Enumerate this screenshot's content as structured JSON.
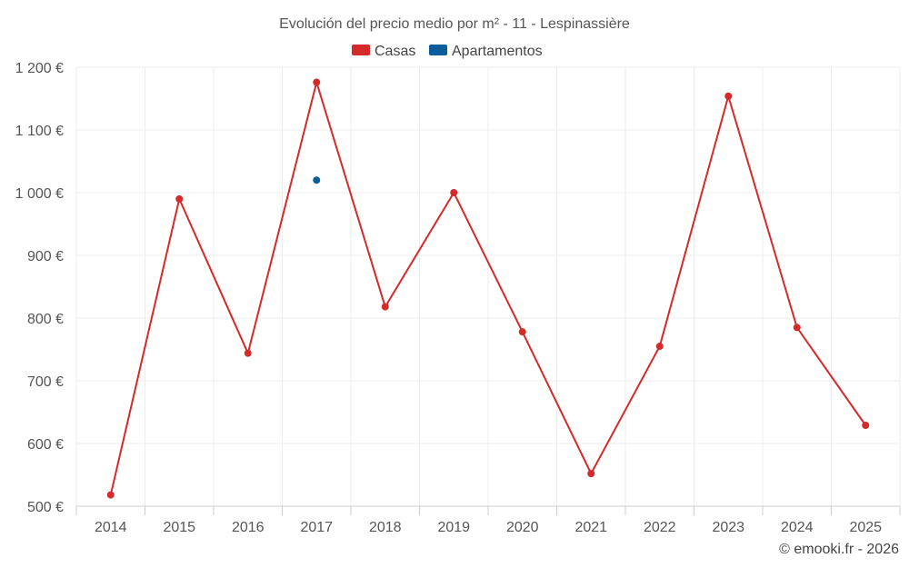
{
  "chart_data": {
    "type": "line",
    "title": "Evolución del precio medio por m² - 11 - Lespinassière",
    "categories": [
      "2014",
      "2015",
      "2016",
      "2017",
      "2018",
      "2019",
      "2020",
      "2021",
      "2022",
      "2023",
      "2024",
      "2025"
    ],
    "series": [
      {
        "name": "Casas",
        "color": "#d42a2a",
        "values": [
          518,
          990,
          744,
          1176,
          818,
          1000,
          778,
          552,
          755,
          1154,
          785,
          629
        ]
      },
      {
        "name": "Apartamentos",
        "color": "#0b5e9b",
        "values": [
          null,
          null,
          null,
          1020,
          null,
          null,
          null,
          null,
          null,
          null,
          null,
          null
        ]
      }
    ],
    "ylim": [
      500,
      1200
    ],
    "yticks": [
      500,
      600,
      700,
      800,
      900,
      1000,
      1100,
      1200
    ],
    "ytick_labels": [
      "500 €",
      "600 €",
      "700 €",
      "800 €",
      "900 €",
      "1 000 €",
      "1 100 €",
      "1 200 €"
    ],
    "xlabel": "",
    "ylabel": "",
    "legend_position": "top-center",
    "grid": true
  },
  "credit": "© emooki.fr - 2026"
}
